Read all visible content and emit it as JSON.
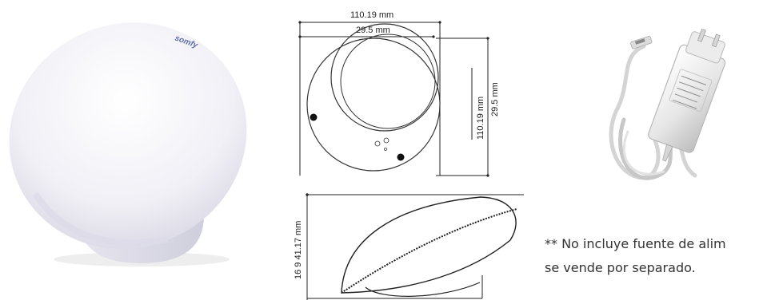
{
  "photo": {
    "brand_logo": "somfy",
    "colors": {
      "shell": "#f3f2f7",
      "shadow": "#d7d6e3",
      "logo": "#5e6ea5"
    }
  },
  "diagram": {
    "top_view": {
      "width_outer": "110.19 mm",
      "width_inner": "29.5 mm",
      "height_outer": "110.19 mm",
      "height_inner": "29.5 mm"
    },
    "side_view": {
      "height_label": "16 9 41.17 mm"
    }
  },
  "note": {
    "line1": "** No incluye fuente de alim",
    "line2": "se vende por separado."
  }
}
